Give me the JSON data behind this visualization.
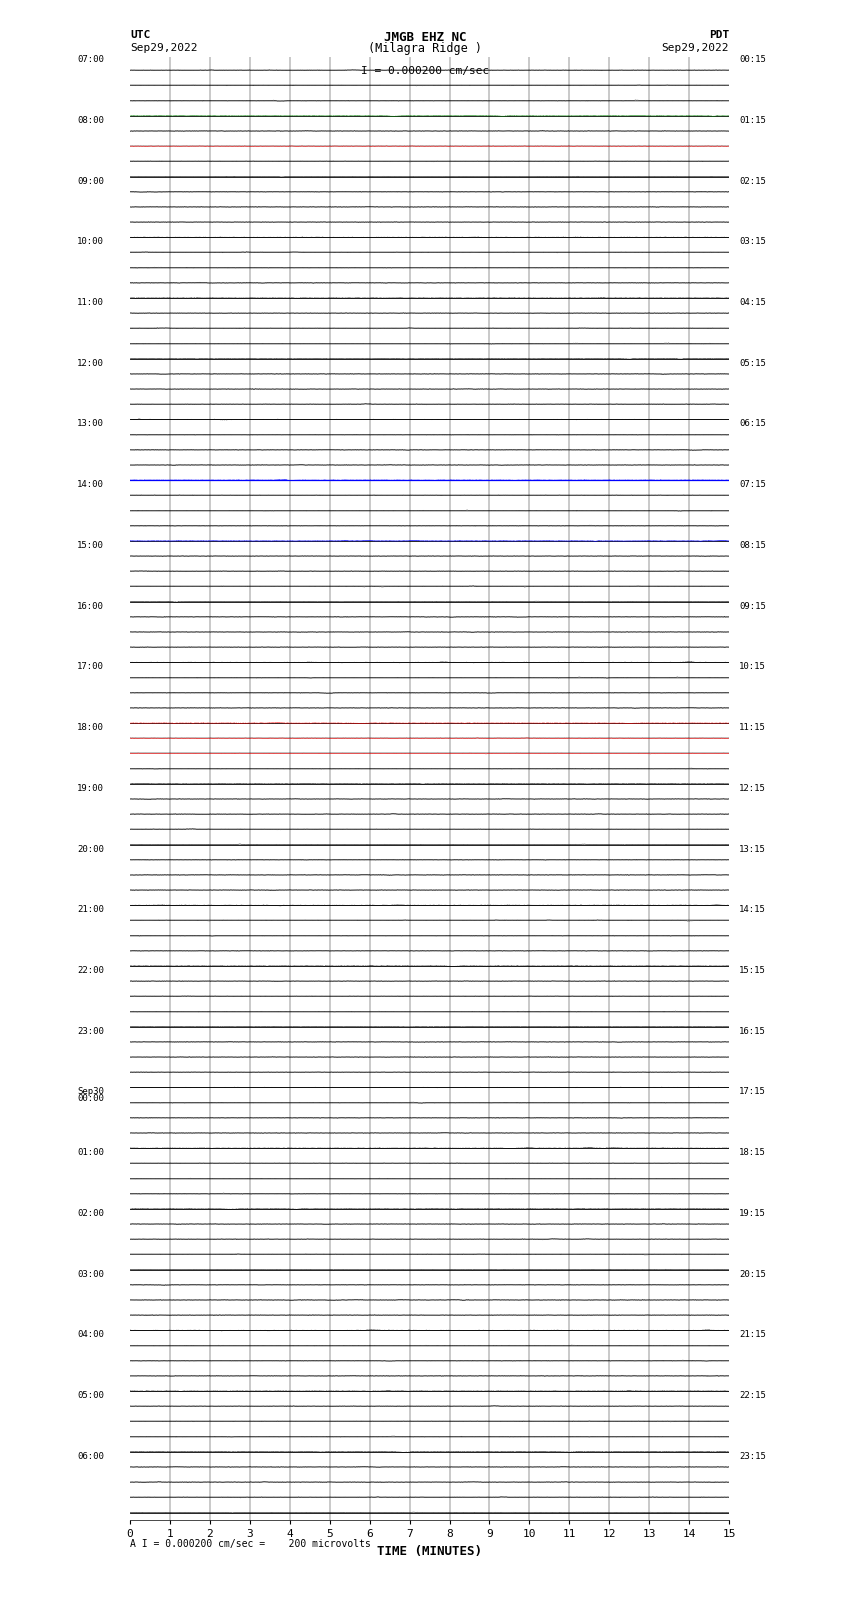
{
  "title_line1": "JMGB EHZ NC",
  "title_line2": "(Milagra Ridge )",
  "scale_text": "I = 0.000200 cm/sec",
  "utc_label": "UTC",
  "utc_date": "Sep29,2022",
  "pdt_label": "PDT",
  "pdt_date": "Sep29,2022",
  "bottom_label": "A I = 0.000200 cm/sec =    200 microvolts",
  "xlabel": "TIME (MINUTES)",
  "left_times": [
    "07:00",
    "",
    "",
    "",
    "08:00",
    "",
    "",
    "",
    "09:00",
    "",
    "",
    "",
    "10:00",
    "",
    "",
    "",
    "11:00",
    "",
    "",
    "",
    "12:00",
    "",
    "",
    "",
    "13:00",
    "",
    "",
    "",
    "14:00",
    "",
    "",
    "",
    "15:00",
    "",
    "",
    "",
    "16:00",
    "",
    "",
    "",
    "17:00",
    "",
    "",
    "",
    "18:00",
    "",
    "",
    "",
    "19:00",
    "",
    "",
    "",
    "20:00",
    "",
    "",
    "",
    "21:00",
    "",
    "",
    "",
    "22:00",
    "",
    "",
    "",
    "23:00",
    "",
    "",
    "",
    "Sep30\n00:00",
    "",
    "",
    "",
    "01:00",
    "",
    "",
    "",
    "02:00",
    "",
    "",
    "",
    "03:00",
    "",
    "",
    "",
    "04:00",
    "",
    "",
    "",
    "05:00",
    "",
    "",
    "",
    "06:00",
    "",
    "",
    ""
  ],
  "right_times": [
    "00:15",
    "",
    "",
    "",
    "01:15",
    "",
    "",
    "",
    "02:15",
    "",
    "",
    "",
    "03:15",
    "",
    "",
    "",
    "04:15",
    "",
    "",
    "",
    "05:15",
    "",
    "",
    "",
    "06:15",
    "",
    "",
    "",
    "07:15",
    "",
    "",
    "",
    "08:15",
    "",
    "",
    "",
    "09:15",
    "",
    "",
    "",
    "10:15",
    "",
    "",
    "",
    "11:15",
    "",
    "",
    "",
    "12:15",
    "",
    "",
    "",
    "13:15",
    "",
    "",
    "",
    "14:15",
    "",
    "",
    "",
    "15:15",
    "",
    "",
    "",
    "16:15",
    "",
    "",
    "",
    "17:15",
    "",
    "",
    "",
    "18:15",
    "",
    "",
    "",
    "19:15",
    "",
    "",
    "",
    "20:15",
    "",
    "",
    "",
    "21:15",
    "",
    "",
    "",
    "22:15",
    "",
    "",
    "",
    "23:15",
    "",
    "",
    ""
  ],
  "n_traces": 96,
  "n_hours": 24,
  "minutes_per_trace": 15,
  "bg_color": "#ffffff",
  "trace_color": "#000000",
  "noise_scale": 0.025,
  "noise_seed": 42,
  "blue_solid_row": 27,
  "blue_dashed_row": 31,
  "green_row": 3,
  "red_row1": 5,
  "red_row2": 43
}
